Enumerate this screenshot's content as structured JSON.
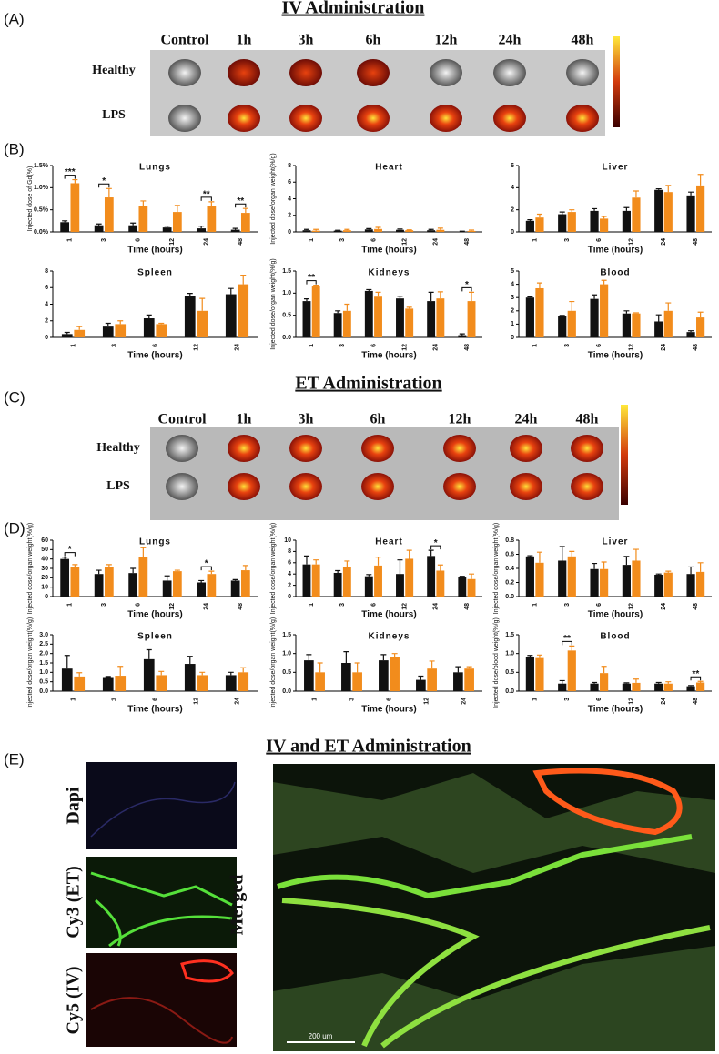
{
  "figure": {
    "panels": [
      "(A)",
      "(B)",
      "(C)",
      "(D)",
      "(E)"
    ],
    "titles": [
      "IV Administration",
      "ET Administration",
      "IV and ET Administration"
    ],
    "imaging_iv": {
      "columns": [
        "Control",
        "1h",
        "3h",
        "6h",
        "12h",
        "24h",
        "48h"
      ],
      "rows": [
        "Healthy",
        "LPS"
      ]
    },
    "imaging_et": {
      "columns": [
        "Control",
        "1h",
        "3h",
        "6h",
        "12h",
        "24h",
        "48h"
      ],
      "rows": [
        "Healthy",
        "LPS"
      ]
    },
    "microscopy": {
      "channels": [
        "Dapi",
        "Cy3 (ET)",
        "Cy5 (IV)"
      ],
      "merged": "Merged",
      "scale_bar": "200 um"
    }
  },
  "chart_data": [
    {
      "type": "bar",
      "title": "Lungs",
      "ylabel": "Injected dose of Gd(%)",
      "xlabel": "Time (hours)",
      "categories": [
        "1",
        "3",
        "6",
        "12",
        "24",
        "48"
      ],
      "series": [
        {
          "color": "#111111",
          "values": [
            0.22,
            0.15,
            0.15,
            0.1,
            0.08,
            0.05
          ],
          "errors": [
            0.03,
            0.03,
            0.05,
            0.03,
            0.05,
            0.03
          ]
        },
        {
          "color": "#f28c1c",
          "values": [
            1.1,
            0.78,
            0.58,
            0.45,
            0.58,
            0.43
          ],
          "errors": [
            0.08,
            0.2,
            0.12,
            0.15,
            0.1,
            0.1
          ]
        }
      ],
      "ylim": [
        0,
        1.5
      ],
      "yticks": [
        {
          "value": 0,
          "label": "0.0%"
        },
        {
          "value": 0.5,
          "label": "0.5%"
        },
        {
          "value": 1,
          "label": "1.0%"
        },
        {
          "value": 1.5,
          "label": "1.5%"
        }
      ],
      "annotations": [
        {
          "text": "***",
          "category": "1"
        },
        {
          "text": "*",
          "category": "3"
        },
        {
          "text": "**",
          "category": "24"
        },
        {
          "text": "**",
          "category": "48"
        }
      ]
    },
    {
      "type": "bar",
      "title": "Heart",
      "ylabel": "Injected dose/organ weight(%/g)",
      "xlabel": "Time (hours)",
      "categories": [
        "1",
        "3",
        "6",
        "12",
        "24",
        "48"
      ],
      "series": [
        {
          "color": "#111111",
          "values": [
            0.2,
            0.15,
            0.3,
            0.25,
            0.2,
            0.05
          ],
          "errors": [
            0.1,
            0.05,
            0.1,
            0.1,
            0.1,
            0.03
          ]
        },
        {
          "color": "#f28c1c",
          "values": [
            0.15,
            0.2,
            0.35,
            0.2,
            0.25,
            0.12
          ],
          "errors": [
            0.15,
            0.1,
            0.2,
            0.05,
            0.2,
            0.1
          ]
        }
      ],
      "ylim": [
        0,
        8
      ],
      "yticks": [
        0,
        2,
        4,
        6,
        8
      ],
      "annotations": []
    },
    {
      "type": "bar",
      "title": "Liver",
      "ylabel": "",
      "xlabel": "Time (hours)",
      "categories": [
        "1",
        "3",
        "6",
        "12",
        "24",
        "48"
      ],
      "series": [
        {
          "color": "#111111",
          "values": [
            1.0,
            1.6,
            1.9,
            1.9,
            3.8,
            3.3
          ],
          "errors": [
            0.1,
            0.2,
            0.2,
            0.3,
            0.1,
            0.3
          ]
        },
        {
          "color": "#f28c1c",
          "values": [
            1.3,
            1.8,
            1.2,
            3.1,
            3.6,
            4.2
          ],
          "errors": [
            0.3,
            0.2,
            0.2,
            0.6,
            0.6,
            1.0
          ]
        }
      ],
      "ylim": [
        0,
        6
      ],
      "yticks": [
        0,
        2,
        4,
        6
      ],
      "annotations": []
    },
    {
      "type": "bar",
      "title": "Spleen",
      "ylabel": "",
      "xlabel": "Time (hours)",
      "categories": [
        "1",
        "3",
        "6",
        "12",
        "24"
      ],
      "series": [
        {
          "color": "#111111",
          "values": [
            0.4,
            1.3,
            2.3,
            5.0,
            5.2
          ],
          "errors": [
            0.2,
            0.4,
            0.4,
            0.3,
            0.7
          ]
        },
        {
          "color": "#f28c1c",
          "values": [
            0.9,
            1.6,
            1.6,
            3.2,
            6.4
          ],
          "errors": [
            0.4,
            0.4,
            0.1,
            1.5,
            1.1
          ]
        }
      ],
      "ylim": [
        0,
        8
      ],
      "yticks": [
        0,
        2,
        4,
        6,
        8
      ],
      "annotations": []
    },
    {
      "type": "bar",
      "title": "Kidneys",
      "ylabel": "Injected dose/organ weight(%/g)",
      "xlabel": "Time (hours)",
      "categories": [
        "1",
        "3",
        "6",
        "12",
        "24",
        "48"
      ],
      "series": [
        {
          "color": "#111111",
          "values": [
            0.82,
            0.55,
            1.05,
            0.88,
            0.82,
            0.05
          ],
          "errors": [
            0.05,
            0.05,
            0.03,
            0.05,
            0.2,
            0.03
          ]
        },
        {
          "color": "#f28c1c",
          "values": [
            1.15,
            0.6,
            0.92,
            0.65,
            0.88,
            0.82
          ],
          "errors": [
            0.03,
            0.15,
            0.1,
            0.03,
            0.15,
            0.2
          ]
        }
      ],
      "ylim": [
        0,
        1.5
      ],
      "yticks": [
        {
          "value": 0,
          "label": "0.0"
        },
        0.5,
        {
          "value": 1,
          "label": "1.0"
        },
        1.5
      ],
      "annotations": [
        {
          "text": "**",
          "category": "1"
        },
        {
          "text": "*",
          "category": "48"
        }
      ]
    },
    {
      "type": "bar",
      "title": "Blood",
      "ylabel": "",
      "xlabel": "Time (hours)",
      "categories": [
        "1",
        "3",
        "6",
        "12",
        "24",
        "48"
      ],
      "series": [
        {
          "color": "#111111",
          "values": [
            3.0,
            1.6,
            2.9,
            1.8,
            1.2,
            0.4
          ],
          "errors": [
            0.05,
            0.05,
            0.3,
            0.2,
            0.5,
            0.1
          ]
        },
        {
          "color": "#f28c1c",
          "values": [
            3.7,
            2.0,
            4.0,
            1.8,
            2.0,
            1.5
          ],
          "errors": [
            0.4,
            0.7,
            0.3,
            0.05,
            0.6,
            0.4
          ]
        }
      ],
      "ylim": [
        0,
        5
      ],
      "yticks": [
        0,
        1,
        2,
        3,
        4,
        5
      ],
      "annotations": []
    },
    {
      "type": "bar",
      "title": "Lungs",
      "ylabel": "Injected dose/organ weight(%/g)",
      "xlabel": "Time (hours)",
      "categories": [
        "1",
        "3",
        "6",
        "12",
        "24",
        "48"
      ],
      "series": [
        {
          "color": "#111111",
          "values": [
            40,
            24,
            25,
            17,
            15,
            17
          ],
          "errors": [
            2,
            4,
            5,
            5,
            2,
            1
          ]
        },
        {
          "color": "#f28c1c",
          "values": [
            31,
            31,
            42,
            27,
            24,
            28
          ],
          "errors": [
            3,
            3,
            10,
            1,
            3,
            5
          ]
        }
      ],
      "ylim": [
        0,
        60
      ],
      "yticks": [
        0,
        10,
        20,
        30,
        40,
        50,
        60
      ],
      "annotations": [
        {
          "text": "*",
          "category": "1"
        },
        {
          "text": "*",
          "category": "24"
        }
      ]
    },
    {
      "type": "bar",
      "title": "Heart",
      "ylabel": "Injected dose/organ weight(%/g)",
      "xlabel": "Time (hours)",
      "categories": [
        "1",
        "3",
        "6",
        "12",
        "24",
        "48"
      ],
      "series": [
        {
          "color": "#111111",
          "values": [
            5.7,
            4.2,
            3.6,
            4.0,
            7.2,
            3.4
          ],
          "errors": [
            1.5,
            0.4,
            0.3,
            2.5,
            1.0,
            0.2
          ]
        },
        {
          "color": "#f28c1c",
          "values": [
            5.7,
            5.3,
            5.5,
            6.7,
            4.6,
            3.1
          ],
          "errors": [
            0.8,
            1.0,
            1.5,
            1.5,
            1.0,
            0.9
          ]
        }
      ],
      "ylim": [
        0,
        10
      ],
      "yticks": [
        0,
        2,
        4,
        6,
        8,
        10
      ],
      "annotations": [
        {
          "text": "*",
          "category": "24"
        }
      ]
    },
    {
      "type": "bar",
      "title": "Liver",
      "ylabel": "Injected dose/organ weight(%/g)",
      "xlabel": "Time (hours)",
      "categories": [
        "1",
        "3",
        "6",
        "12",
        "24",
        "48"
      ],
      "series": [
        {
          "color": "#111111",
          "values": [
            0.57,
            0.51,
            0.39,
            0.45,
            0.31,
            0.32
          ],
          "errors": [
            0.01,
            0.2,
            0.08,
            0.12,
            0.01,
            0.1
          ]
        },
        {
          "color": "#f28c1c",
          "values": [
            0.48,
            0.57,
            0.39,
            0.51,
            0.34,
            0.35
          ],
          "errors": [
            0.15,
            0.07,
            0.1,
            0.16,
            0.02,
            0.13
          ]
        }
      ],
      "ylim": [
        0,
        0.8
      ],
      "yticks": [
        {
          "value": 0,
          "label": "0.0"
        },
        0.2,
        0.4,
        0.6,
        0.8
      ],
      "annotations": []
    },
    {
      "type": "bar",
      "title": "Spleen",
      "ylabel": "Injected dose/organ weight(%/g)",
      "xlabel": "Time (hours)",
      "categories": [
        "1",
        "3",
        "6",
        "12",
        "24"
      ],
      "series": [
        {
          "color": "#111111",
          "values": [
            1.2,
            0.75,
            1.7,
            1.45,
            0.85
          ],
          "errors": [
            0.7,
            0.03,
            0.5,
            0.4,
            0.15
          ]
        },
        {
          "color": "#f28c1c",
          "values": [
            0.78,
            0.82,
            0.85,
            0.85,
            1.0
          ],
          "errors": [
            0.2,
            0.5,
            0.2,
            0.15,
            0.25
          ]
        }
      ],
      "ylim": [
        0,
        3
      ],
      "yticks": [
        {
          "value": 0,
          "label": "0.0"
        },
        0.5,
        {
          "value": 1,
          "label": "1.0"
        },
        1.5,
        {
          "value": 2,
          "label": "2.0"
        },
        2.5,
        {
          "value": 3,
          "label": "3.0"
        }
      ],
      "annotations": []
    },
    {
      "type": "bar",
      "title": "Kidneys",
      "ylabel": "Injected dose/organ weight(%/g)",
      "xlabel": "Time (hours)",
      "categories": [
        "1",
        "3",
        "6",
        "12",
        "24"
      ],
      "series": [
        {
          "color": "#111111",
          "values": [
            0.82,
            0.75,
            0.82,
            0.3,
            0.5
          ],
          "errors": [
            0.15,
            0.3,
            0.15,
            0.1,
            0.15
          ]
        },
        {
          "color": "#f28c1c",
          "values": [
            0.5,
            0.5,
            0.9,
            0.6,
            0.6
          ],
          "errors": [
            0.25,
            0.25,
            0.1,
            0.2,
            0.05
          ]
        }
      ],
      "ylim": [
        0,
        1.5
      ],
      "yticks": [
        {
          "value": 0,
          "label": "0.0"
        },
        0.5,
        {
          "value": 1,
          "label": "1.0"
        },
        1.5
      ],
      "annotations": []
    },
    {
      "type": "bar",
      "title": "Blood",
      "ylabel": "Injected dose/blood weight(%/g)",
      "xlabel": "Time (hours)",
      "categories": [
        "1",
        "3",
        "6",
        "12",
        "24",
        "48"
      ],
      "series": [
        {
          "color": "#111111",
          "values": [
            0.9,
            0.2,
            0.2,
            0.2,
            0.2,
            0.13
          ],
          "errors": [
            0.05,
            0.08,
            0.03,
            0.02,
            0.03,
            0.02
          ]
        },
        {
          "color": "#f28c1c",
          "values": [
            0.88,
            1.08,
            0.48,
            0.22,
            0.2,
            0.23
          ],
          "errors": [
            0.08,
            0.12,
            0.18,
            0.1,
            0.05,
            0.03
          ]
        }
      ],
      "ylim": [
        0,
        1.5
      ],
      "yticks": [
        {
          "value": 0,
          "label": "0.0"
        },
        0.5,
        {
          "value": 1,
          "label": "1.0"
        },
        1.5
      ],
      "annotations": [
        {
          "text": "**",
          "category": "3"
        },
        {
          "text": "**",
          "category": "48"
        }
      ]
    }
  ]
}
